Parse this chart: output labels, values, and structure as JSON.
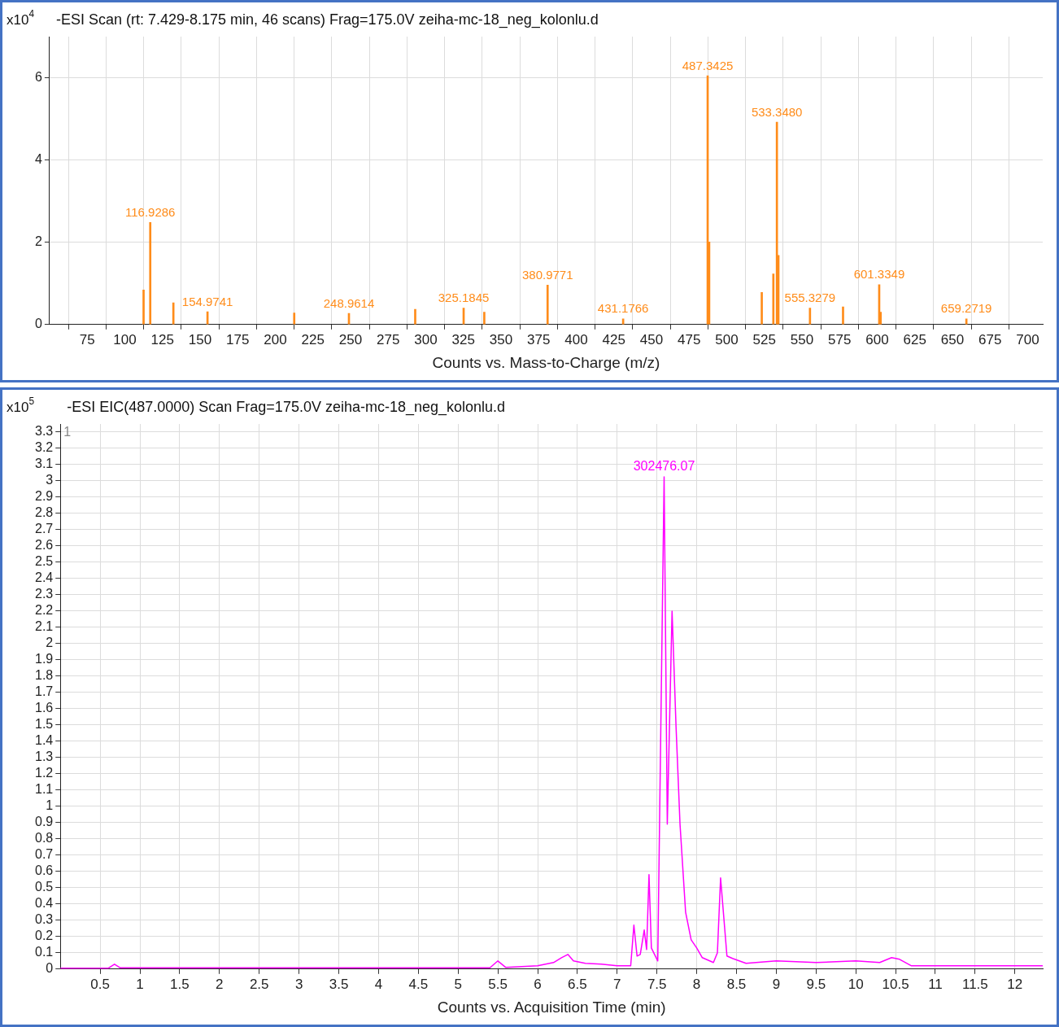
{
  "chart_data": [
    {
      "type": "bar",
      "title": "-ESI Scan (rt: 7.429-8.175 min, 46 scans) Frag=175.0V zeiha-mc-18_neg_kolonlu.d",
      "xlabel": "Counts vs. Mass-to-Charge (m/z)",
      "ylabel": "x10$^{4}$",
      "x": [
        112.5,
        116.9286,
        132.3,
        154.9741,
        212.6,
        248.9614,
        293,
        325.1845,
        338.9,
        380.9771,
        431.1766,
        487.3425,
        488.35,
        523.3,
        531,
        533.348,
        534.35,
        555.3279,
        577.3,
        601.3349,
        602.3,
        659.2719
      ],
      "values": [
        0.84,
        2.48,
        0.53,
        0.31,
        0.28,
        0.27,
        0.37,
        0.4,
        0.3,
        0.96,
        0.14,
        6.05,
        2.01,
        0.78,
        1.23,
        4.92,
        1.68,
        0.4,
        0.43,
        0.97,
        0.3,
        0.14
      ],
      "color": "#ff8c1a",
      "xlim": [
        50,
        710
      ],
      "xticks": [
        {
          "value": 50,
          "label": null
        },
        75,
        100,
        125,
        150,
        175,
        200,
        225,
        250,
        275,
        300,
        325,
        350,
        375,
        400,
        425,
        450,
        475,
        500,
        525,
        550,
        575,
        600,
        625,
        650,
        675,
        700
      ],
      "ylim": [
        0,
        7
      ],
      "yticks": [
        0,
        2,
        4,
        6
      ],
      "grid": true,
      "legend": false,
      "annotations": [
        {
          "text": "116.9286",
          "x": 116.9286,
          "y": 2.48
        },
        {
          "text": "154.9741",
          "x": 154.9741,
          "y": 0.31
        },
        {
          "text": "248.9614",
          "x": 248.9614,
          "y": 0.27
        },
        {
          "text": "325.1845",
          "x": 325.1845,
          "y": 0.4
        },
        {
          "text": "380.9771",
          "x": 380.9771,
          "y": 0.96
        },
        {
          "text": "431.1766",
          "x": 431.1766,
          "y": 0.14
        },
        {
          "text": "487.3425",
          "x": 487.3425,
          "y": 6.05
        },
        {
          "text": "533.3480",
          "x": 533.348,
          "y": 4.92
        },
        {
          "text": "555.3279",
          "x": 555.3279,
          "y": 0.4
        },
        {
          "text": "601.3349",
          "x": 601.3349,
          "y": 0.97
        },
        {
          "text": "659.2719",
          "x": 659.2719,
          "y": 0.14
        }
      ]
    },
    {
      "type": "line",
      "title": "-ESI EIC(487.0000) Scan Frag=175.0V zeiha-mc-18_neg_kolonlu.d",
      "xlabel": "Counts vs. Acquisition Time (min)",
      "ylabel": "x10$^{5}$",
      "x": [
        0,
        0.6,
        0.68,
        0.75,
        2,
        4,
        5.4,
        5.5,
        5.6,
        6.0,
        6.2,
        6.3,
        6.38,
        6.45,
        6.6,
        6.8,
        7.0,
        7.17,
        7.21,
        7.25,
        7.29,
        7.34,
        7.37,
        7.4,
        7.43,
        7.51,
        7.59,
        7.63,
        7.69,
        7.74,
        7.79,
        7.86,
        7.93,
        8.0,
        8.07,
        8.21,
        8.26,
        8.3,
        8.38,
        8.45,
        8.62,
        9.0,
        9.5,
        10.0,
        10.3,
        10.45,
        10.55,
        10.7,
        11.5,
        12.35
      ],
      "values": [
        0.005,
        0.005,
        0.03,
        0.008,
        0.008,
        0.008,
        0.008,
        0.05,
        0.01,
        0.02,
        0.04,
        0.07,
        0.09,
        0.05,
        0.035,
        0.03,
        0.02,
        0.02,
        0.27,
        0.08,
        0.09,
        0.24,
        0.12,
        0.58,
        0.13,
        0.05,
        3.02476,
        0.89,
        2.2,
        1.49,
        0.89,
        0.35,
        0.18,
        0.13,
        0.07,
        0.04,
        0.1,
        0.56,
        0.08,
        0.065,
        0.035,
        0.05,
        0.04,
        0.05,
        0.04,
        0.07,
        0.06,
        0.02,
        0.02,
        0.02
      ],
      "color": "#ff00ff",
      "xlim": [
        0,
        12.35
      ],
      "xticks": [
        0.5,
        1,
        1.5,
        2,
        2.5,
        3,
        3.5,
        4,
        4.5,
        5,
        5.5,
        6,
        6.5,
        7,
        7.5,
        8,
        8.5,
        9,
        9.5,
        10,
        10.5,
        11,
        11.5,
        12
      ],
      "ylim": [
        0,
        3.35
      ],
      "yticks": [
        0,
        0.1,
        0.2,
        0.3,
        0.4,
        0.5,
        0.6,
        0.7,
        0.8,
        0.9,
        1,
        1.1,
        1.2,
        1.3,
        1.4,
        1.5,
        1.6,
        1.7,
        1.8,
        1.9,
        2,
        2.1,
        2.2,
        2.3,
        2.4,
        2.5,
        2.6,
        2.7,
        2.8,
        2.9,
        3,
        3.1,
        3.2,
        3.3
      ],
      "grid": true,
      "legend": false,
      "annotations": [
        {
          "text": "302476.07",
          "x": 7.59,
          "y": 3.02476
        },
        "1"
      ]
    }
  ]
}
